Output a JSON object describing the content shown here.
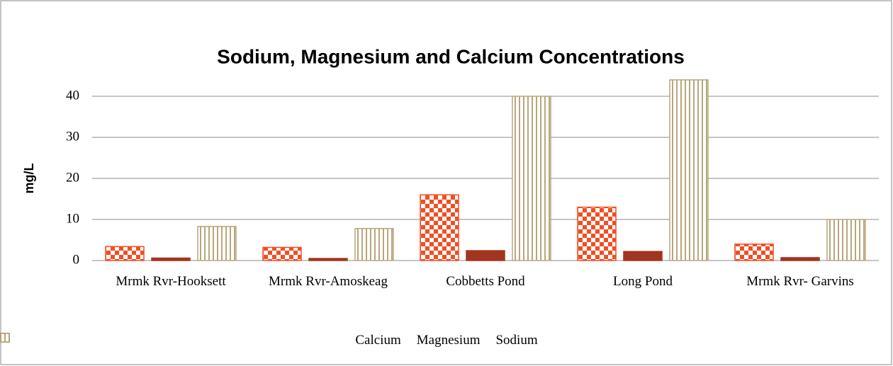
{
  "chart_data": {
    "type": "bar",
    "title": "Sodium, Magnesium and Calcium Concentrations",
    "y_label": "mg/L",
    "categories": [
      "Mrmk Rvr-Hooksett",
      "Mrmk Rvr-Amoskeag",
      "Cobbetts Pond",
      "Long Pond",
      "Mrmk Rvr- Garvins"
    ],
    "series": [
      {
        "name": "Calcium",
        "color": "#f04e23",
        "pattern": "checker",
        "values": [
          3.4,
          3.2,
          16,
          13,
          4.0
        ]
      },
      {
        "name": "Magnesium",
        "color": "#a3341e",
        "pattern": "solid",
        "values": [
          0.6,
          0.5,
          2.4,
          2.2,
          0.7
        ]
      },
      {
        "name": "Sodium",
        "color": "#b9a67c",
        "pattern": "vertical",
        "values": [
          8.3,
          7.8,
          40,
          44,
          10
        ]
      }
    ],
    "ylim": [
      0,
      45
    ],
    "yticks": [
      0,
      10,
      20,
      30,
      40
    ],
    "grid": true
  }
}
